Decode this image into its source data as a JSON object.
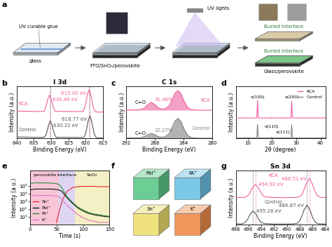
{
  "schematic": {
    "label": "a",
    "glue_label": "UV curable glue",
    "glass_label": "glass",
    "stack_label": "FTO/SnO₂/perovskite",
    "light_label": "UV lights",
    "interface_labels": [
      "Buried interface",
      "Buried interface"
    ],
    "result_label": "Glass/perovskite"
  },
  "chart_data": [
    {
      "type": "line",
      "label": "b",
      "title": "I 3d",
      "xlabel": "Binding Energy (eV)",
      "ylabel": "Intensity (a.u.)",
      "xlim": [
        640,
        615
      ],
      "xticks": [
        640,
        635,
        630,
        625,
        620,
        615
      ],
      "ylim": [
        0,
        3.0
      ],
      "tick_labels": "x",
      "series": [
        {
          "name": "KCA",
          "color": "#ee5fa0",
          "x": [
            640,
            636,
            633,
            632,
            631.74,
            631.24,
            630.94,
            630.46,
            629.94,
            629.64,
            629.24,
            628.74,
            627,
            624,
            621,
            620.74,
            620.24,
            619.74,
            619.49,
            619.0,
            618.54,
            618.24,
            617.74,
            617.24,
            616.74,
            615
          ],
          "values": [
            1.58,
            1.56,
            1.55,
            1.57,
            1.69,
            2.04,
            2.29,
            2.5,
            2.26,
            2.0,
            1.72,
            1.55,
            1.56,
            1.55,
            1.55,
            1.56,
            1.78,
            2.25,
            2.53,
            2.8,
            2.54,
            2.21,
            1.75,
            1.56,
            1.52,
            1.52
          ],
          "peaks": [
            630.46,
            619.0
          ],
          "peak_labels": [
            "630.46 eV",
            "619.00 eV"
          ]
        },
        {
          "name": "Control",
          "color": "#555555",
          "x": [
            640,
            636,
            633,
            632,
            631.5,
            631,
            630.7,
            630.22,
            629.7,
            629.4,
            629,
            628.5,
            627,
            624,
            621,
            620.5,
            620,
            619.5,
            619.25,
            618.77,
            618.3,
            618,
            617.5,
            617,
            616.5,
            615
          ],
          "values": [
            0.08,
            0.06,
            0.05,
            0.07,
            0.19,
            0.54,
            0.79,
            1.0,
            0.76,
            0.5,
            0.22,
            0.05,
            0.06,
            0.05,
            0.05,
            0.06,
            0.28,
            0.75,
            1.03,
            1.3,
            1.04,
            0.71,
            0.25,
            0.06,
            0.02,
            0.02
          ],
          "peaks": [
            630.22,
            618.77
          ],
          "peak_labels": [
            "630.22 eV",
            "618.77 eV"
          ]
        }
      ]
    },
    {
      "type": "area",
      "label": "c",
      "title": "C 1s",
      "xlabel": "Binding Energy (eV)",
      "ylabel": "Intensity (a.u.)",
      "xlim": [
        292,
        280
      ],
      "xticks": [
        292,
        288,
        284,
        280
      ],
      "ylim": [
        0,
        2.6
      ],
      "tick_labels": "x",
      "series": [
        {
          "name": "KCA",
          "color": "#ee5fa0",
          "x": [
            292,
            290,
            289.5,
            289,
            288.5,
            288,
            287.5,
            287,
            286.5,
            286,
            285.6,
            285.2,
            284.8,
            284.4,
            284,
            283.5,
            283,
            282,
            280
          ],
          "values": [
            1.42,
            1.44,
            1.52,
            1.69,
            1.8,
            1.69,
            1.52,
            1.46,
            1.5,
            1.65,
            1.95,
            2.28,
            2.4,
            2.25,
            1.9,
            1.57,
            1.44,
            1.41,
            1.41
          ],
          "peak": 288.5,
          "bond": "C=O",
          "ratio": "31.48%"
        },
        {
          "name": "Control",
          "color": "#7f7f7f",
          "x": [
            292,
            290,
            289.5,
            289,
            288.5,
            288,
            287.5,
            287,
            286.5,
            286,
            285.6,
            285.2,
            284.8,
            284.4,
            284,
            283.5,
            283,
            282,
            280
          ],
          "values": [
            0.02,
            0.03,
            0.08,
            0.18,
            0.25,
            0.18,
            0.08,
            0.05,
            0.1,
            0.25,
            0.55,
            0.88,
            1.0,
            0.85,
            0.5,
            0.17,
            0.04,
            0.01,
            0.01
          ],
          "peak": 288.5,
          "bond": "C=O",
          "ratio": "22.27%"
        }
      ]
    },
    {
      "type": "line",
      "label": "d",
      "xlabel": "2θ (degree)",
      "ylabel": "Intensity (a.u.)",
      "xlim": [
        5,
        42
      ],
      "xticks": [
        10,
        20,
        30,
        40
      ],
      "ylim": [
        0,
        2.6
      ],
      "tick_labels": "x",
      "legend": "upper right",
      "peak_labels": [
        {
          "x": 14.0,
          "label": "α(100)"
        },
        {
          "x": 19.9,
          "label": "α(110)"
        },
        {
          "x": 24.4,
          "label": "α(111)"
        },
        {
          "x": 28.1,
          "label": "α(200)"
        }
      ],
      "series": [
        {
          "name": "KCA",
          "color": "#ee5fa0",
          "x": [
            5,
            13.7,
            14.0,
            14.3,
            19.7,
            19.9,
            20.1,
            24.2,
            24.4,
            24.6,
            27.8,
            28.1,
            28.4,
            42
          ],
          "values": [
            1.02,
            1.02,
            1.9,
            1.02,
            1.02,
            1.06,
            1.02,
            1.02,
            1.05,
            1.02,
            1.02,
            1.85,
            1.02,
            1.02
          ]
        },
        {
          "name": "Control",
          "color": "#7f7f7f",
          "x": [
            5,
            13.7,
            14.0,
            14.3,
            19.7,
            19.9,
            20.1,
            24.2,
            24.4,
            24.6,
            27.8,
            28.1,
            28.4,
            42
          ],
          "values": [
            0.02,
            0.02,
            0.7,
            0.02,
            0.02,
            0.05,
            0.02,
            0.02,
            0.04,
            0.02,
            0.02,
            0.68,
            0.02,
            0.02
          ]
        }
      ]
    },
    {
      "type": "line",
      "label": "e",
      "xlabel": "Time (s)",
      "ylabel": "Intensity (a.u.)",
      "log": "y",
      "xlim": [
        0,
        150
      ],
      "xticks": [
        0,
        50,
        100,
        150
      ],
      "ylim": [
        1,
        10000000
      ],
      "yticks": [
        {
          "value": 10,
          "label": "10¹"
        },
        {
          "value": 100,
          "label": "10²"
        },
        {
          "value": 1000,
          "label": "10³"
        },
        {
          "value": 10000,
          "label": "10⁴"
        },
        {
          "value": 100000,
          "label": "10⁵"
        }
      ],
      "legend": "lower left",
      "regions": [
        {
          "name": "perovskite",
          "start": 0,
          "end": 55,
          "color": "#f7c6d9"
        },
        {
          "name": "interface",
          "start": 55,
          "end": 85,
          "color": "#ddd5f2"
        },
        {
          "name": "SnO₂",
          "start": 85,
          "end": 150,
          "color": "#f4efc4"
        }
      ],
      "x": [
        0,
        10,
        20,
        30,
        40,
        50,
        55,
        60,
        65,
        70,
        80,
        90,
        100,
        110,
        120,
        130,
        140,
        150
      ],
      "series": [
        {
          "name": "Sn⁺",
          "color": "#e8262f",
          "values": [
            null,
            null,
            null,
            null,
            null,
            2,
            50,
            800,
            5000,
            20000,
            60000,
            80000,
            90000,
            90000,
            90000,
            80000,
            80000,
            80000
          ]
        },
        {
          "name": "PbI⁺",
          "color": "#111111",
          "values": [
            30000,
            40000,
            40000,
            40000,
            40000,
            35000,
            30000,
            20000,
            8000,
            3000,
            600,
            150,
            60,
            30,
            20,
            15,
            12,
            10
          ]
        },
        {
          "name": "FA⁺",
          "color": "#2e8b3e",
          "values": [
            200000,
            250000,
            250000,
            250000,
            230000,
            200000,
            150000,
            60000,
            15000,
            4000,
            800,
            200,
            80,
            40,
            25,
            20,
            15,
            12
          ]
        },
        {
          "name": "K⁺",
          "color": "#e377c2",
          "values": [
            5000,
            6000,
            6000,
            6000,
            6000,
            5000,
            4000,
            2000,
            800,
            300,
            80,
            20,
            8,
            4,
            3,
            2,
            2,
            2
          ]
        }
      ]
    },
    {
      "type": "line",
      "label": "g",
      "title": "Sn 3d",
      "xlabel": "Binding Energy (eV)",
      "ylabel": "Intensity (a.u.)",
      "xlim": [
        498,
        484
      ],
      "xticks": [
        498,
        496,
        494,
        492,
        490,
        488,
        486,
        484
      ],
      "ylim": [
        0,
        3.7
      ],
      "tick_labels": "x",
      "series": [
        {
          "name": "KCA",
          "color": "#ee5fa0",
          "x": [
            498,
            496.64,
            496.14,
            495.74,
            495.42,
            494.92,
            494.42,
            494.04,
            493.64,
            493.14,
            491.64,
            489.64,
            488.64,
            488.04,
            487.64,
            487.24,
            487.01,
            486.51,
            486.01,
            485.64,
            485.24,
            484.84,
            484
          ],
          "values": [
            1.86,
            1.86,
            1.97,
            2.2,
            2.49,
            2.75,
            2.49,
            2.16,
            1.95,
            1.88,
            1.85,
            1.85,
            1.86,
            1.9,
            2.07,
            2.47,
            2.77,
            3.15,
            2.77,
            2.3,
            1.99,
            1.87,
            1.85
          ],
          "peaks": [
            494.92,
            486.51
          ],
          "peak_labels": [
            "494.92 eV",
            "486.51 eV"
          ]
        },
        {
          "name": "Control",
          "color": "#555555",
          "x": [
            498,
            497,
            496.5,
            496.1,
            495.78,
            495.28,
            494.78,
            494.4,
            494,
            493.5,
            492,
            490,
            489,
            488.4,
            488.0,
            487.6,
            487.37,
            486.87,
            486.37,
            486.0,
            485.6,
            485.2,
            484
          ],
          "values": [
            0.06,
            0.06,
            0.17,
            0.4,
            0.69,
            0.95,
            0.69,
            0.36,
            0.15,
            0.08,
            0.05,
            0.05,
            0.06,
            0.1,
            0.27,
            0.67,
            0.97,
            1.35,
            0.97,
            0.5,
            0.19,
            0.07,
            0.05
          ],
          "peaks": [
            495.28,
            486.87
          ],
          "peak_labels": [
            "495.28 eV",
            "486.87 eV"
          ]
        }
      ]
    }
  ],
  "cubes": {
    "label": "f",
    "cubes": [
      {
        "name": "PbI⁺",
        "color": "#5cc98a"
      },
      {
        "name": "FA⁺",
        "color": "#6cc3e6"
      },
      {
        "name": "Sn⁺",
        "color": "#efe070"
      },
      {
        "name": "K⁺",
        "color": "#f08c4a"
      }
    ]
  }
}
